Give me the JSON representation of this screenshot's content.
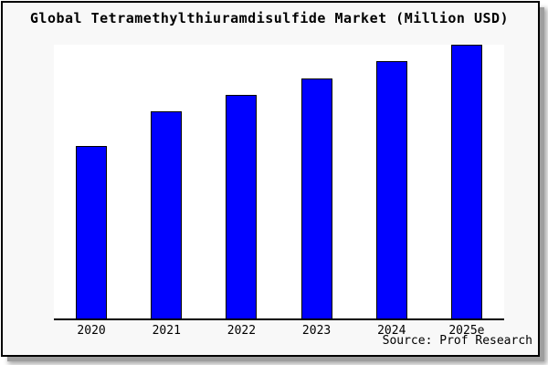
{
  "chart_data": {
    "type": "bar",
    "title": "Global Tetramethylthiuramdisulfide Market (Million USD)",
    "categories": [
      "2020",
      "2021",
      "2022",
      "2023",
      "2024",
      "2025e"
    ],
    "values": [
      63,
      75.5,
      81.8,
      87.8,
      94,
      100
    ],
    "xlabel": "",
    "ylabel": "",
    "ylim": [
      0,
      100
    ],
    "grid": false,
    "y_axis_visible": false,
    "legend_position": "none",
    "bar_color": "#0000ff",
    "bar_edge_color": "#000000"
  },
  "source_label": "Source: Prof Research",
  "colors": {
    "frame_background": "#f8f8f8",
    "plot_background": "#ffffff",
    "frame_border": "#000000",
    "axis_line": "#000000",
    "text": "#000000"
  }
}
